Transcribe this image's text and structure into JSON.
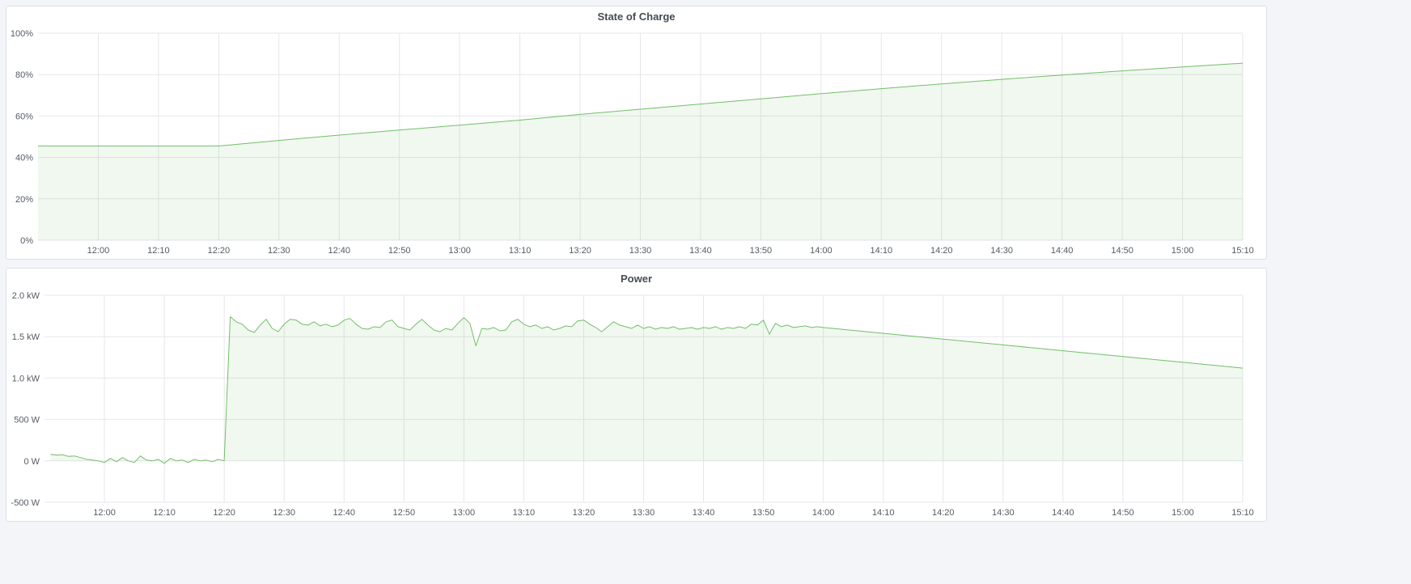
{
  "colors": {
    "line": "#73bf69",
    "fill": "rgba(115,191,105,0.11)",
    "grid": "#e6e7ea",
    "background": "#f4f5f8"
  },
  "chart_data": [
    {
      "type": "area",
      "title": "State of Charge",
      "xlim": [
        "11:50",
        "15:10"
      ],
      "x_ticks": [
        "12:00",
        "12:10",
        "12:20",
        "12:30",
        "12:40",
        "12:50",
        "13:00",
        "13:10",
        "13:20",
        "13:30",
        "13:40",
        "13:50",
        "14:00",
        "14:10",
        "14:20",
        "14:30",
        "14:40",
        "14:50",
        "15:00",
        "15:10"
      ],
      "ylim": [
        0,
        100
      ],
      "y_ticks": [
        0,
        20,
        40,
        60,
        80,
        100
      ],
      "y_tick_labels": [
        "0%",
        "20%",
        "40%",
        "60%",
        "80%",
        "100%"
      ],
      "grid": true,
      "x": [
        "11:50",
        "12:00",
        "12:10",
        "12:20",
        "12:30",
        "12:40",
        "12:50",
        "13:00",
        "13:10",
        "13:20",
        "13:30",
        "13:40",
        "13:50",
        "14:00",
        "14:10",
        "14:20",
        "14:30",
        "14:40",
        "14:50",
        "15:00",
        "15:10"
      ],
      "y": [
        45.5,
        45.5,
        45.5,
        45.5,
        48.2,
        50.8,
        53.2,
        55.6,
        58.0,
        60.8,
        63.3,
        65.8,
        68.3,
        70.8,
        73.2,
        75.5,
        77.7,
        79.8,
        81.8,
        83.7,
        85.5
      ]
    },
    {
      "type": "area",
      "title": "Power",
      "xlim": [
        "11:50",
        "15:10"
      ],
      "x_ticks": [
        "12:00",
        "12:10",
        "12:20",
        "12:30",
        "12:40",
        "12:50",
        "13:00",
        "13:10",
        "13:20",
        "13:30",
        "13:40",
        "13:50",
        "14:00",
        "14:10",
        "14:20",
        "14:30",
        "14:40",
        "14:50",
        "15:00",
        "15:10"
      ],
      "ylim": [
        -500,
        2000
      ],
      "y_ticks": [
        -500,
        0,
        500,
        1000,
        1500,
        2000
      ],
      "y_tick_labels": [
        "-500 W",
        "0 W",
        "500 W",
        "1.0 kW",
        "1.5 kW",
        "2.0 kW"
      ],
      "grid": true,
      "x": [
        "11:51",
        "11:52",
        "11:53",
        "11:54",
        "11:55",
        "11:56",
        "11:57",
        "11:58",
        "11:59",
        "12:00",
        "12:01",
        "12:02",
        "12:03",
        "12:04",
        "12:05",
        "12:06",
        "12:07",
        "12:08",
        "12:09",
        "12:10",
        "12:11",
        "12:12",
        "12:13",
        "12:14",
        "12:15",
        "12:16",
        "12:17",
        "12:18",
        "12:19",
        "12:20",
        "12:21",
        "12:22",
        "12:23",
        "12:24",
        "12:25",
        "12:26",
        "12:27",
        "12:28",
        "12:29",
        "12:30",
        "12:31",
        "12:32",
        "12:33",
        "12:34",
        "12:35",
        "12:36",
        "12:37",
        "12:38",
        "12:39",
        "12:40",
        "12:41",
        "12:42",
        "12:43",
        "12:44",
        "12:45",
        "12:46",
        "12:47",
        "12:48",
        "12:49",
        "12:50",
        "12:51",
        "12:52",
        "12:53",
        "12:54",
        "12:55",
        "12:56",
        "12:57",
        "12:58",
        "12:59",
        "13:00",
        "13:01",
        "13:02",
        "13:03",
        "13:04",
        "13:05",
        "13:06",
        "13:07",
        "13:08",
        "13:09",
        "13:10",
        "13:11",
        "13:12",
        "13:13",
        "13:14",
        "13:15",
        "13:16",
        "13:17",
        "13:18",
        "13:19",
        "13:20",
        "13:21",
        "13:22",
        "13:23",
        "13:24",
        "13:25",
        "13:26",
        "13:27",
        "13:28",
        "13:29",
        "13:30",
        "13:31",
        "13:32",
        "13:33",
        "13:34",
        "13:35",
        "13:36",
        "13:37",
        "13:38",
        "13:39",
        "13:40",
        "13:41",
        "13:42",
        "13:43",
        "13:44",
        "13:45",
        "13:46",
        "13:47",
        "13:48",
        "13:49",
        "13:50",
        "13:51",
        "13:52",
        "13:53",
        "13:54",
        "13:55",
        "13:56",
        "13:57",
        "13:58",
        "13:59",
        "14:00",
        "14:10",
        "14:20",
        "14:30",
        "14:40",
        "14:50",
        "15:00",
        "15:10"
      ],
      "y": [
        80,
        70,
        75,
        55,
        60,
        40,
        20,
        10,
        0,
        -20,
        30,
        -10,
        40,
        0,
        -20,
        60,
        10,
        0,
        20,
        -30,
        30,
        0,
        10,
        -20,
        20,
        0,
        10,
        -10,
        20,
        0,
        1740,
        1680,
        1650,
        1580,
        1550,
        1640,
        1710,
        1600,
        1560,
        1650,
        1710,
        1700,
        1650,
        1640,
        1680,
        1630,
        1650,
        1620,
        1640,
        1700,
        1720,
        1650,
        1600,
        1590,
        1620,
        1610,
        1680,
        1700,
        1620,
        1600,
        1580,
        1650,
        1710,
        1640,
        1580,
        1560,
        1600,
        1580,
        1660,
        1730,
        1660,
        1390,
        1600,
        1590,
        1610,
        1570,
        1580,
        1680,
        1710,
        1650,
        1620,
        1640,
        1600,
        1620,
        1580,
        1600,
        1630,
        1620,
        1690,
        1700,
        1650,
        1610,
        1560,
        1620,
        1680,
        1640,
        1620,
        1600,
        1640,
        1600,
        1620,
        1590,
        1610,
        1600,
        1620,
        1590,
        1600,
        1610,
        1590,
        1610,
        1600,
        1620,
        1590,
        1610,
        1600,
        1620,
        1600,
        1650,
        1640,
        1700,
        1530,
        1660,
        1620,
        1640,
        1610,
        1620,
        1630,
        1610,
        1620,
        1610,
        1540,
        1470,
        1400,
        1330,
        1260,
        1190,
        1120
      ]
    }
  ]
}
